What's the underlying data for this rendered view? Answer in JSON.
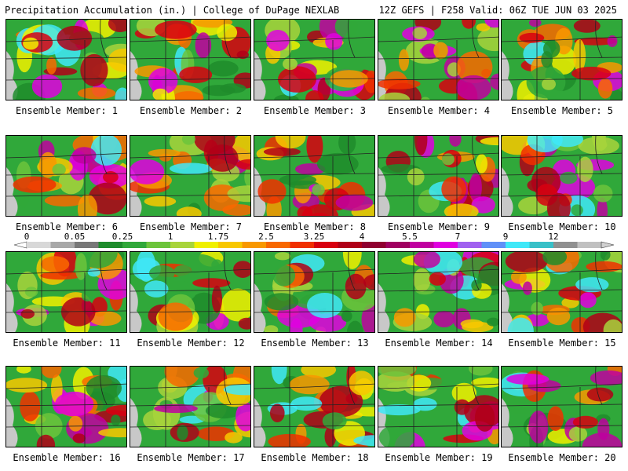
{
  "header": {
    "title": "Precipitation Accumulation (in.) | College of DuPage NEXLAB",
    "run_info": "12Z GEFS | F258 Valid: 06Z TUE JUN 03 2025"
  },
  "colorbar": {
    "labels": [
      "0",
      "0.05",
      "0.25",
      "1",
      "1.75",
      "2.5",
      "3.25",
      "4",
      "5.5",
      "7",
      "9",
      "12"
    ],
    "colors": [
      "#d8d8d8",
      "#a8a8a8",
      "#787878",
      "#1e8c2c",
      "#30a83a",
      "#6cc43c",
      "#a8d43c",
      "#f0f000",
      "#f8c800",
      "#f89800",
      "#f86800",
      "#f03000",
      "#d80010",
      "#b00018",
      "#900030",
      "#a00060",
      "#c000a0",
      "#e000e0",
      "#a060f0",
      "#6090f8",
      "#40e8f8",
      "#38c0c8",
      "#909090",
      "#c0c0c0"
    ]
  },
  "members": [
    {
      "label": "Ensemble Member: 1"
    },
    {
      "label": "Ensemble Member: 2"
    },
    {
      "label": "Ensemble Member: 3"
    },
    {
      "label": "Ensemble Member: 4"
    },
    {
      "label": "Ensemble Member: 5"
    },
    {
      "label": "Ensemble Member: 6"
    },
    {
      "label": "Ensemble Member: 7"
    },
    {
      "label": "Ensemble Member: 8"
    },
    {
      "label": "Ensemble Member: 9"
    },
    {
      "label": "Ensemble Member: 10"
    },
    {
      "label": "Ensemble Member: 11"
    },
    {
      "label": "Ensemble Member: 12"
    },
    {
      "label": "Ensemble Member: 13"
    },
    {
      "label": "Ensemble Member: 14"
    },
    {
      "label": "Ensemble Member: 15"
    },
    {
      "label": "Ensemble Member: 16"
    },
    {
      "label": "Ensemble Member: 17"
    },
    {
      "label": "Ensemble Member: 18"
    },
    {
      "label": "Ensemble Member: 19"
    },
    {
      "label": "Ensemble Member: 20"
    }
  ]
}
